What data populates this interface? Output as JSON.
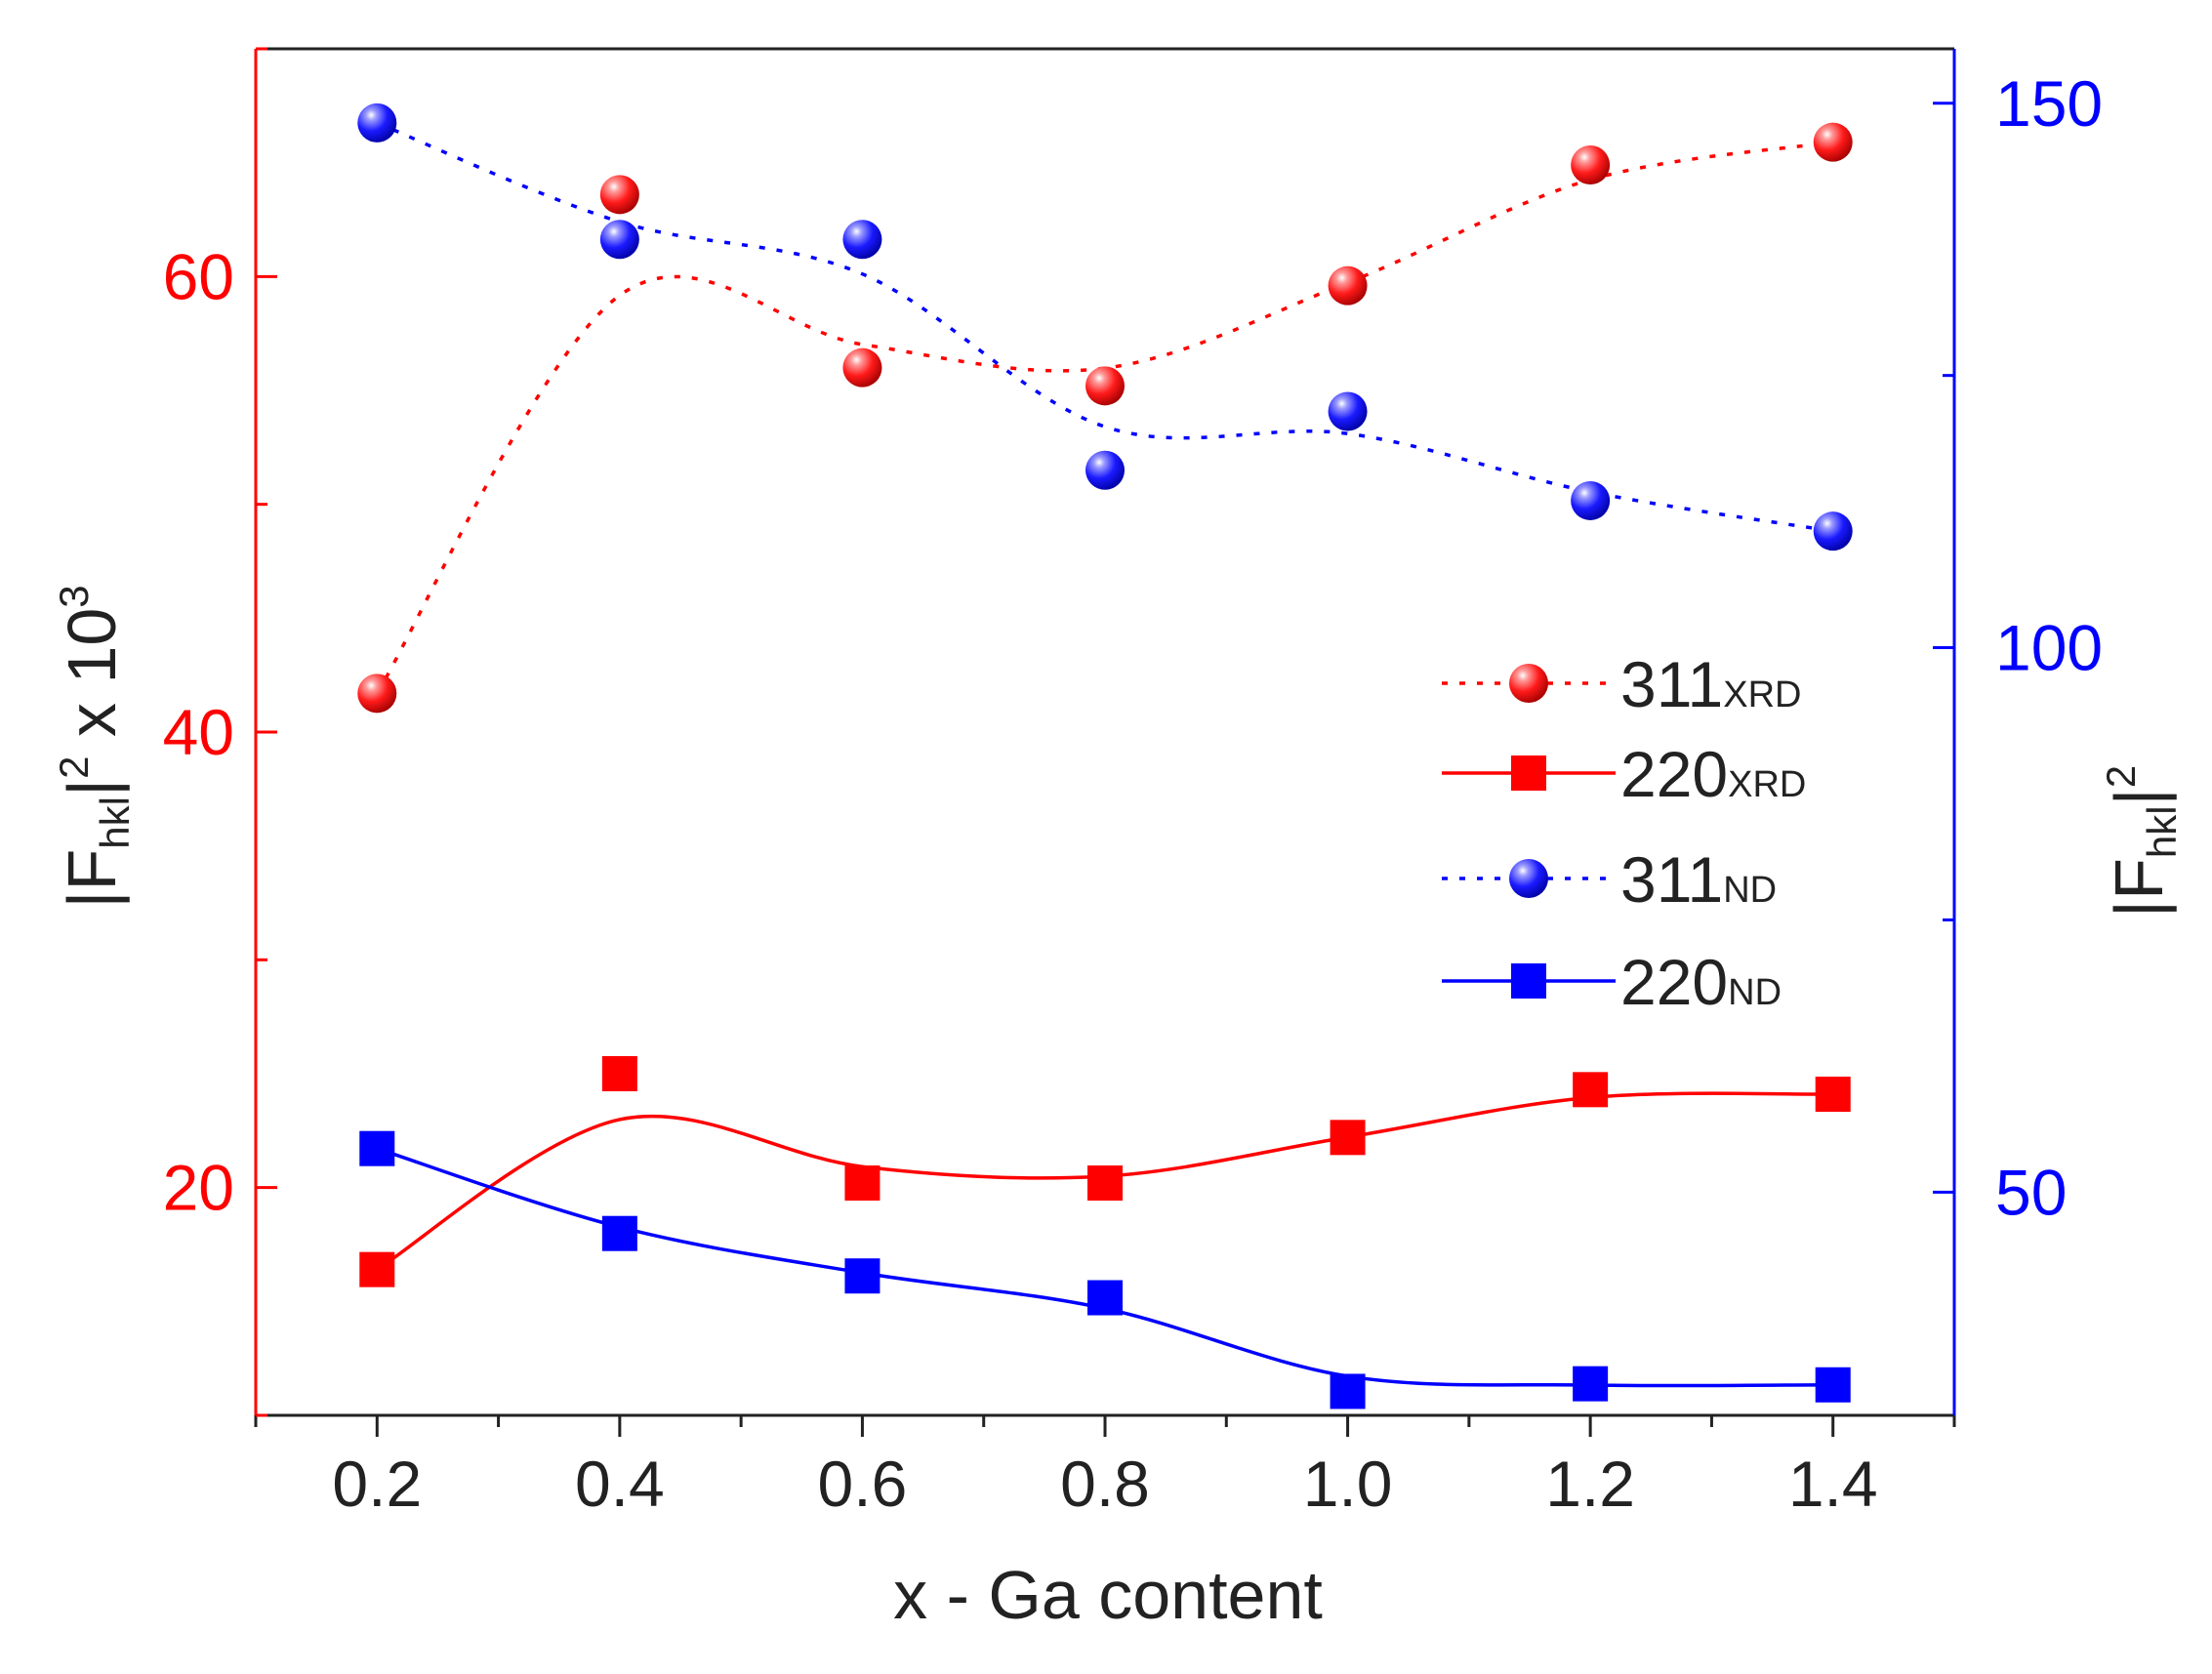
{
  "chart_data": {
    "type": "line",
    "xlabel": "x - Ga content",
    "ylabel_left": {
      "base": "|F",
      "sub": "hkl",
      "tail": "|",
      "sup": "2",
      "suffix": " x 10",
      "sup2": "3"
    },
    "ylabel_right": {
      "base": "|F",
      "sub": "hkl",
      "tail": "|",
      "sup": "2"
    },
    "x_range": [
      0.1,
      1.5
    ],
    "x_ticks": [
      0.2,
      0.4,
      0.6,
      0.8,
      1.0,
      1.2,
      1.4
    ],
    "x_tick_labels": [
      "0.2",
      "0.4",
      "0.6",
      "0.8",
      "1.0",
      "1.2",
      "1.4"
    ],
    "y_left_range": [
      10,
      70
    ],
    "y_left_ticks": [
      20,
      40,
      60
    ],
    "y_left_tick_labels": [
      "20",
      "40",
      "60"
    ],
    "y_right_range": [
      29.5,
      155
    ],
    "y_right_ticks": [
      50,
      100,
      150
    ],
    "y_right_tick_labels": [
      "50",
      "100",
      "150"
    ],
    "colors": {
      "xrd": "#ff0000",
      "nd": "#0000ff",
      "axis_left": "#ff0000",
      "axis_right": "#0000ff",
      "axis_frame": "#222222"
    },
    "legend_position": "center-right",
    "series": [
      {
        "name": "311XRD",
        "label_main": "311",
        "label_sub": "XRD",
        "axis": "left",
        "color": "#ff0000",
        "marker": "sphere",
        "line": "dotted",
        "x": [
          0.2,
          0.4,
          0.6,
          0.8,
          1.0,
          1.2,
          1.4
        ],
        "values": [
          41.7,
          63.6,
          56.0,
          55.2,
          59.6,
          64.9,
          65.9
        ]
      },
      {
        "name": "220XRD",
        "label_main": "220",
        "label_sub": "XRD",
        "axis": "left",
        "color": "#ff0000",
        "marker": "square",
        "line": "solid",
        "x": [
          0.2,
          0.4,
          0.6,
          0.8,
          1.0,
          1.2,
          1.4
        ],
        "values": [
          16.4,
          25.0,
          20.2,
          20.2,
          22.2,
          24.3,
          24.1
        ]
      },
      {
        "name": "311ND",
        "label_main": "311",
        "label_sub": "ND",
        "axis": "right",
        "color": "#0000ff",
        "marker": "sphere",
        "line": "dotted",
        "x": [
          0.2,
          0.4,
          0.6,
          0.8,
          1.0,
          1.2,
          1.4
        ],
        "values": [
          148.2,
          137.5,
          137.5,
          116.3,
          121.7,
          113.5,
          110.7
        ]
      },
      {
        "name": "220ND",
        "label_main": "220",
        "label_sub": "ND",
        "axis": "right",
        "color": "#0000ff",
        "marker": "square",
        "line": "solid",
        "x": [
          0.2,
          0.4,
          0.6,
          0.8,
          1.0,
          1.2,
          1.4
        ],
        "values": [
          54.0,
          46.2,
          42.3,
          40.3,
          31.7,
          32.4,
          32.3
        ]
      }
    ]
  }
}
